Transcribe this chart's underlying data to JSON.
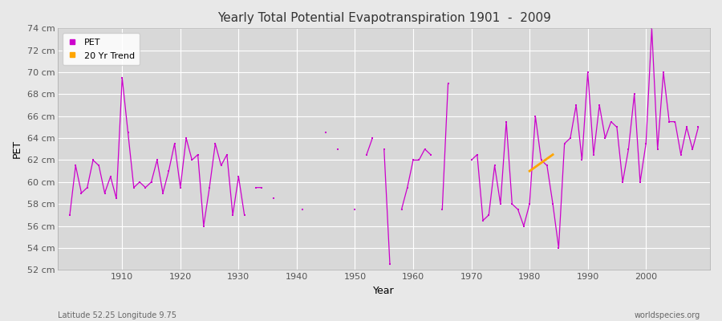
{
  "title": "Yearly Total Potential Evapotranspiration 1901  -  2009",
  "ylabel": "PET",
  "xlabel": "Year",
  "subtitle_left": "Latitude 52.25 Longitude 9.75",
  "subtitle_right": "worldspecies.org",
  "ylim": [
    52,
    74
  ],
  "yticks": [
    52,
    54,
    56,
    58,
    60,
    62,
    64,
    66,
    68,
    70,
    72,
    74
  ],
  "ytick_labels": [
    "52 cm",
    "54 cm",
    "56 cm",
    "58 cm",
    "60 cm",
    "62 cm",
    "64 cm",
    "66 cm",
    "68 cm",
    "70 cm",
    "72 cm",
    "74 cm"
  ],
  "xlim": [
    1899,
    2011
  ],
  "xticks": [
    1910,
    1920,
    1930,
    1940,
    1950,
    1960,
    1970,
    1980,
    1990,
    2000
  ],
  "bg_color": "#e8e8e8",
  "plot_bg_color": "#d8d8d8",
  "grid_color": "#ffffff",
  "pet_color": "#cc00cc",
  "trend_color": "#ffa500",
  "pet_years": [
    1901,
    1902,
    1903,
    1904,
    1905,
    1906,
    1907,
    1908,
    1909,
    1910,
    1911,
    1912,
    1913,
    1914,
    1915,
    1916,
    1917,
    1918,
    1919,
    1920,
    1921,
    1922,
    1923,
    1924,
    1925,
    1926,
    1927,
    1928,
    1929,
    1930,
    1931,
    1932,
    1933,
    1934,
    1935,
    1936,
    1937,
    1938,
    1939,
    1940,
    1941,
    1942,
    1943,
    1944,
    1945,
    1946,
    1947,
    1948,
    1949,
    1950,
    1951,
    1952,
    1953,
    1954,
    1955,
    1956,
    1957,
    1958,
    1959,
    1960,
    1961,
    1962,
    1963,
    1964,
    1965,
    1966,
    1967,
    1968,
    1969,
    1970,
    1971,
    1972,
    1973,
    1974,
    1975,
    1976,
    1977,
    1978,
    1979,
    1980,
    1981,
    1982,
    1983,
    1984,
    1985,
    1986,
    1987,
    1988,
    1989,
    1990,
    1991,
    1992,
    1993,
    1994,
    1995,
    1996,
    1997,
    1998,
    1999,
    2000,
    2001,
    2002,
    2003,
    2004,
    2005,
    2006,
    2007,
    2008,
    2009
  ],
  "pet_values": [
    57.0,
    61.5,
    59.0,
    59.5,
    62.0,
    61.5,
    59.0,
    60.5,
    58.5,
    69.5,
    64.5,
    59.5,
    60.0,
    59.5,
    60.0,
    62.0,
    59.0,
    61.0,
    63.5,
    59.5,
    64.0,
    62.0,
    62.5,
    56.0,
    59.5,
    63.5,
    61.5,
    62.5,
    57.0,
    60.5,
    57.0,
    null,
    null,
    59.5,
    null,
    null,
    null,
    null,
    null,
    null,
    null,
    null,
    null,
    null,
    null,
    64.5,
    null,
    63.0,
    null,
    null,
    null,
    null,
    null,
    null,
    null,
    52.5,
    null,
    null,
    null,
    null,
    null,
    null,
    null,
    null,
    null,
    69.0,
    null,
    null,
    null,
    null,
    null,
    null,
    null,
    null,
    null,
    null,
    null,
    null,
    null,
    null,
    null,
    null,
    null,
    null,
    null,
    null,
    null,
    null,
    null,
    null,
    null,
    null,
    null,
    null,
    null,
    null,
    null,
    null,
    null,
    null,
    null,
    null,
    null,
    null,
    null,
    null,
    null,
    null,
    null
  ],
  "pet_years2": [
    1901,
    1902,
    1903,
    1904,
    1905,
    1906,
    1907,
    1908,
    1909,
    1910,
    1911,
    1912,
    1913,
    1914,
    1915,
    1916,
    1917,
    1918,
    1919,
    1920,
    1921,
    1922,
    1923,
    1924,
    1925,
    1926,
    1927,
    1928,
    1929,
    1930,
    1931,
    1933,
    1937,
    1941,
    1942,
    1943,
    1944,
    1945,
    1946,
    1947,
    1948,
    1949,
    1956,
    1958,
    1959,
    1960,
    1961,
    1962,
    1963,
    1964,
    1965,
    1966,
    1967,
    1968,
    1969,
    1970,
    1971,
    1972,
    1973,
    1974,
    1975,
    1976,
    1977,
    1978,
    1979,
    1980,
    1981,
    1982,
    1983,
    1984,
    1985,
    1986,
    1987,
    1988,
    1989,
    1990,
    1991,
    1992,
    1993,
    1994,
    1995,
    1996,
    1997,
    1998,
    1999,
    2000,
    2001,
    2002,
    2003,
    2004,
    2005,
    2006,
    2007,
    2008,
    2009
  ],
  "trend_years": [
    1980,
    1984
  ],
  "trend_values": [
    61.0,
    62.5
  ],
  "title_fontsize": 11,
  "axis_fontsize": 8,
  "label_fontsize": 9
}
